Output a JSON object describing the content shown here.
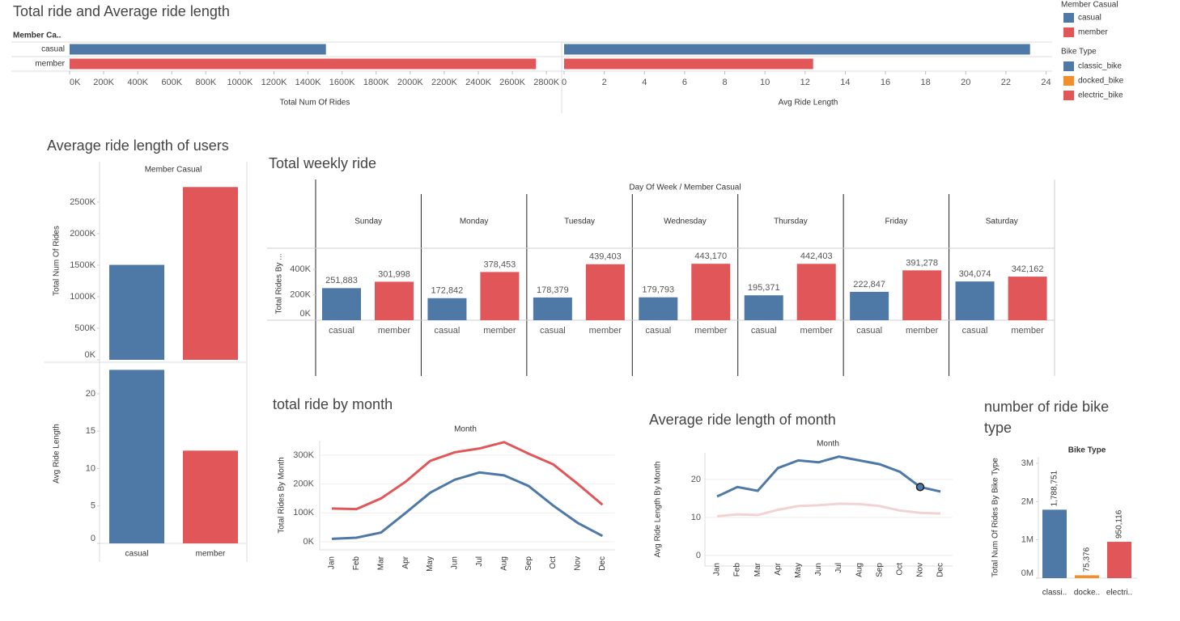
{
  "legends": [
    {
      "title": "Member Casual",
      "items": [
        {
          "name": "casual",
          "color": "#4e79a7"
        },
        {
          "name": "member",
          "color": "#e15759"
        }
      ]
    },
    {
      "title": "Bike Type",
      "items": [
        {
          "name": "classic_bike",
          "color": "#4e79a7"
        },
        {
          "name": "docked_bike",
          "color": "#f28e2b"
        },
        {
          "name": "electric_bike",
          "color": "#e15759"
        }
      ]
    }
  ],
  "chart_data": [
    {
      "type": "bar",
      "orientation": "horizontal",
      "title": "Total ride and Average ride length",
      "row_header": "Member Ca..",
      "categories": [
        "casual",
        "member"
      ],
      "colors": [
        "#4e79a7",
        "#e15759"
      ],
      "panels": [
        {
          "axis_label": "Total Num Of Rides",
          "values": [
            1505189,
            2738867
          ],
          "xlim": [
            0,
            2880000
          ],
          "xticks": [
            {
              "value": 0,
              "label": "0K"
            },
            {
              "value": 200000,
              "label": "200K"
            },
            {
              "value": 400000,
              "label": "400K"
            },
            {
              "value": 600000,
              "label": "600K"
            },
            {
              "value": 800000,
              "label": "800K"
            },
            {
              "value": 1000000,
              "label": "1000K"
            },
            {
              "value": 1200000,
              "label": "1200K"
            },
            {
              "value": 1400000,
              "label": "1400K"
            },
            {
              "value": 1600000,
              "label": "1600K"
            },
            {
              "value": 1800000,
              "label": "1800K"
            },
            {
              "value": 2000000,
              "label": "2000K"
            },
            {
              "value": 2200000,
              "label": "2200K"
            },
            {
              "value": 2400000,
              "label": "2400K"
            },
            {
              "value": 2600000,
              "label": "2600K"
            },
            {
              "value": 2800000,
              "label": "2800K"
            }
          ]
        },
        {
          "axis_label": "Avg Ride Length",
          "values": [
            23.2,
            12.4
          ],
          "xlim": [
            0,
            24.3
          ],
          "xticks": [
            0,
            2,
            4,
            6,
            8,
            10,
            12,
            14,
            16,
            18,
            20,
            22,
            24
          ]
        }
      ]
    },
    {
      "type": "bar",
      "orientation": "vertical",
      "title": "Average ride length of users",
      "column_header": "Member Casual",
      "categories": [
        "casual",
        "member"
      ],
      "colors": [
        "#4e79a7",
        "#e15759"
      ],
      "panels": [
        {
          "axis_label": "Total Num Of Rides",
          "values": [
            1505189,
            2738867
          ],
          "ylim": [
            0,
            3140000
          ],
          "yticks": [
            {
              "value": 0,
              "label": "0K"
            },
            {
              "value": 500000,
              "label": "500K"
            },
            {
              "value": 1000000,
              "label": "1000K"
            },
            {
              "value": 1500000,
              "label": "1500K"
            },
            {
              "value": 2000000,
              "label": "2000K"
            },
            {
              "value": 2500000,
              "label": "2500K"
            }
          ]
        },
        {
          "axis_label": "Avg Ride Length",
          "values": [
            23.2,
            12.4
          ],
          "ylim": [
            0,
            24
          ],
          "yticks": [
            0,
            5,
            10,
            15,
            20
          ]
        }
      ]
    },
    {
      "type": "grouped_bar",
      "title": "Total weekly ride",
      "header": "Day Of Week / Member Casual",
      "axis_label": "Total Rides By ...",
      "categories": [
        "Sunday",
        "Monday",
        "Tuesday",
        "Wednesday",
        "Thursday",
        "Friday",
        "Saturday"
      ],
      "ylim": [
        0,
        565000
      ],
      "yticks": [
        {
          "value": 0,
          "label": "0K"
        },
        {
          "value": 200000,
          "label": "200K"
        },
        {
          "value": 400000,
          "label": "400K"
        }
      ],
      "series": [
        {
          "name": "casual",
          "color": "#4e79a7",
          "values": [
            251883,
            172842,
            178379,
            179793,
            195371,
            222847,
            304074
          ],
          "value_labels": [
            "251,883",
            "172,842",
            "178,379",
            "179,793",
            "195,371",
            "222,847",
            "304,074"
          ]
        },
        {
          "name": "member",
          "color": "#e15759",
          "values": [
            301998,
            378453,
            439403,
            443170,
            442403,
            391278,
            342162
          ],
          "value_labels": [
            "301,998",
            "378,453",
            "439,403",
            "443,170",
            "442,403",
            "391,278",
            "342,162"
          ]
        }
      ]
    },
    {
      "type": "line",
      "title": "total ride by month",
      "header": "Month",
      "axis_label": "Total Rides By Month",
      "grid": true,
      "categories": [
        "Jan",
        "Feb",
        "Mar",
        "Apr",
        "May",
        "Jun",
        "Jul",
        "Aug",
        "Sep",
        "Oct",
        "Nov",
        "Dec"
      ],
      "ylim": [
        -28000,
        350000
      ],
      "yticks": [
        {
          "value": 0,
          "label": "0K"
        },
        {
          "value": 100000,
          "label": "100K"
        },
        {
          "value": 200000,
          "label": "200K"
        },
        {
          "value": 300000,
          "label": "300K"
        }
      ],
      "series": [
        {
          "name": "casual",
          "color": "#4e79a7",
          "values": [
            10000,
            14000,
            32000,
            100000,
            170000,
            215000,
            240000,
            230000,
            193000,
            125000,
            65000,
            20000
          ]
        },
        {
          "name": "member",
          "color": "#e15759",
          "values": [
            115000,
            113000,
            150000,
            208000,
            280000,
            310000,
            323000,
            345000,
            305000,
            268000,
            200000,
            128000
          ]
        }
      ]
    },
    {
      "type": "line",
      "title": "Average ride length of month",
      "header": "Month",
      "axis_label": "Avg Ride Length By Month",
      "grid": true,
      "categories": [
        "Jan",
        "Feb",
        "Mar",
        "Apr",
        "May",
        "Jun",
        "Jul",
        "Aug",
        "Sep",
        "Oct",
        "Nov",
        "Dec"
      ],
      "ylim": [
        -2.8,
        27
      ],
      "yticks": [
        0,
        10,
        20
      ],
      "highlight": {
        "series": 0,
        "index": 10
      },
      "series": [
        {
          "name": "casual",
          "color": "#4e79a7",
          "values": [
            15.5,
            18,
            17,
            23,
            25,
            24.5,
            26,
            25,
            24,
            22,
            18,
            16.8
          ]
        },
        {
          "name": "member",
          "color": "#f3d3d2",
          "values": [
            10.3,
            10.8,
            10.6,
            12,
            13,
            13.2,
            13.6,
            13.5,
            13,
            11.8,
            11.2,
            11
          ]
        }
      ]
    },
    {
      "type": "bar",
      "orientation": "vertical",
      "title": "number of ride bike type",
      "column_header": "Bike Type",
      "categories": [
        "classi..",
        "docke..",
        "electri.."
      ],
      "colors": [
        "#4e79a7",
        "#f28e2b",
        "#e15759"
      ],
      "panels": [
        {
          "axis_label": "Total Num Of Rides By Bike Type",
          "values": [
            1788751,
            75376,
            950116
          ],
          "value_labels": [
            "1,788,751",
            "75,376",
            "950,116"
          ],
          "ylim": [
            0,
            3170000
          ],
          "yticks": [
            {
              "value": 0,
              "label": "0M"
            },
            {
              "value": 1000000,
              "label": "1M"
            },
            {
              "value": 2000000,
              "label": "2M"
            },
            {
              "value": 3000000,
              "label": "3M"
            }
          ]
        }
      ]
    }
  ]
}
